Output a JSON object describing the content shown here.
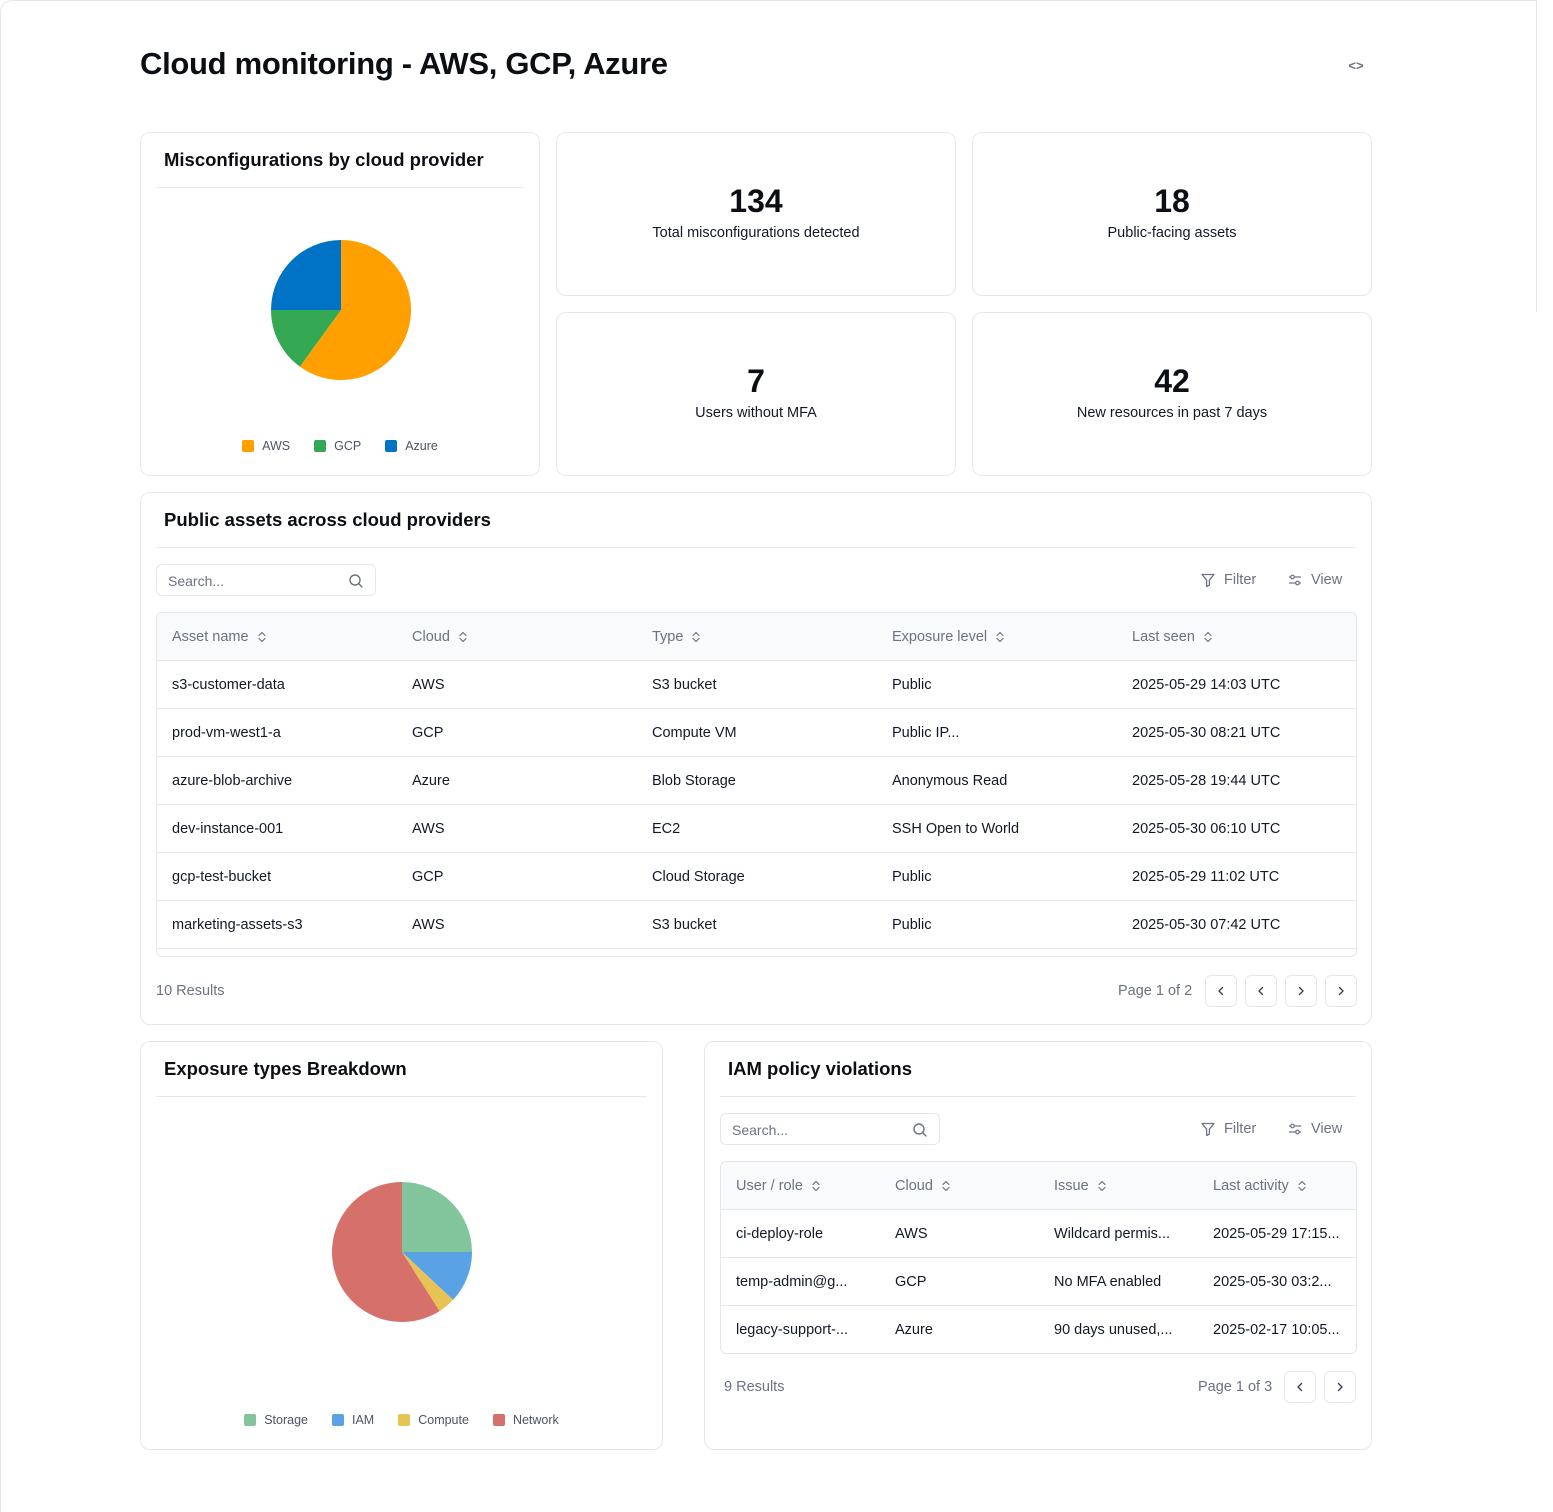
{
  "page": {
    "title": "Cloud monitoring - AWS, GCP, Azure",
    "code_toggle_label": "<>"
  },
  "misconfig_card": {
    "title": "Misconfigurations by cloud provider"
  },
  "chart_data": [
    {
      "type": "pie",
      "title": "Misconfigurations by cloud provider",
      "categories": [
        "AWS",
        "GCP",
        "Azure"
      ],
      "values": [
        60,
        15,
        25
      ],
      "colors": [
        "#ff9f00",
        "#34a853",
        "#0073c6"
      ],
      "legend_position": "bottom"
    },
    {
      "type": "pie",
      "title": "Exposure types Breakdown",
      "categories": [
        "Storage",
        "IAM",
        "Compute",
        "Network"
      ],
      "values": [
        25,
        12,
        4,
        59
      ],
      "colors": [
        "#82c49b",
        "#5aa2e6",
        "#e6c354",
        "#d6706a"
      ],
      "legend_position": "bottom"
    }
  ],
  "stats": [
    {
      "value": "134",
      "label": "Total misconfigurations detected"
    },
    {
      "value": "18",
      "label": "Public-facing assets"
    },
    {
      "value": "7",
      "label": "Users without MFA"
    },
    {
      "value": "42",
      "label": "New resources in past 7 days"
    }
  ],
  "public_assets": {
    "title": "Public assets across cloud providers",
    "search_placeholder": "Search...",
    "filter_label": "Filter",
    "view_label": "View",
    "columns": [
      "Asset name",
      "Cloud",
      "Type",
      "Exposure level",
      "Last seen"
    ],
    "rows": [
      [
        "s3-customer-data",
        "AWS",
        "S3 bucket",
        "Public",
        "2025-05-29 14:03 UTC"
      ],
      [
        "prod-vm-west1-a",
        "GCP",
        "Compute VM",
        "Public IP...",
        "2025-05-30 08:21 UTC"
      ],
      [
        "azure-blob-archive",
        "Azure",
        "Blob Storage",
        "Anonymous Read",
        "2025-05-28 19:44 UTC"
      ],
      [
        "dev-instance-001",
        "AWS",
        "EC2",
        "SSH Open to World",
        "2025-05-30 06:10 UTC"
      ],
      [
        "gcp-test-bucket",
        "GCP",
        "Cloud Storage",
        "Public",
        "2025-05-29 11:02 UTC"
      ],
      [
        "marketing-assets-s3",
        "AWS",
        "S3 bucket",
        "Public",
        "2025-05-30 07:42 UTC"
      ]
    ],
    "results": "10 Results",
    "page_info": "Page 1 of 2"
  },
  "exposure_card": {
    "title": "Exposure types Breakdown"
  },
  "iam": {
    "title": "IAM policy violations",
    "search_placeholder": "Search...",
    "filter_label": "Filter",
    "view_label": "View",
    "columns": [
      "User / role",
      "Cloud",
      "Issue",
      "Last activity"
    ],
    "rows": [
      [
        "ci-deploy-role",
        "AWS",
        "Wildcard permis...",
        "2025-05-29 17:15..."
      ],
      [
        "temp-admin@g...",
        "GCP",
        "No MFA enabled",
        "2025-05-30 03:2..."
      ],
      [
        "legacy-support-...",
        "Azure",
        "90 days unused,...",
        "2025-02-17 10:05..."
      ]
    ],
    "results": "9 Results",
    "page_info": "Page 1 of 3"
  },
  "colors": {
    "border": "#e5e7eb",
    "muted_text": "#6b7280",
    "header_bg": "#f8fafc"
  }
}
